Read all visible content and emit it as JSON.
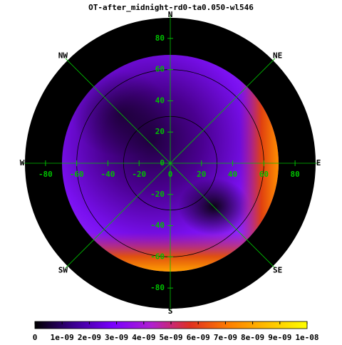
{
  "chart_data": {
    "type": "skymap",
    "title": "OT-after_midnight-rd0-ta0.050-wl546",
    "direction_labels": [
      "N",
      "NE",
      "E",
      "SE",
      "S",
      "SW",
      "W",
      "NW"
    ],
    "xlim": [
      -90,
      90
    ],
    "ylim": [
      -90,
      90
    ],
    "xticks": [
      -80,
      -60,
      -40,
      -20,
      0,
      20,
      40,
      60,
      80
    ],
    "yticks": [
      -80,
      -60,
      -40,
      -20,
      0,
      20,
      40,
      60,
      80
    ],
    "circles": [
      30,
      60
    ],
    "grid_color": "#00c000",
    "zlim": [
      0,
      {
        "value": 1e-08,
        "label": "1e-08"
      }
    ],
    "zticks": [
      0,
      {
        "value": 1e-09,
        "label": "1e-09"
      },
      {
        "value": 2e-09,
        "label": "2e-09"
      },
      {
        "value": 3e-09,
        "label": "3e-09"
      },
      {
        "value": 4e-09,
        "label": "4e-09"
      },
      {
        "value": 5e-09,
        "label": "5e-09"
      },
      {
        "value": 6e-09,
        "label": "6e-09"
      },
      {
        "value": 7e-09,
        "label": "7e-09"
      },
      {
        "value": 8e-09,
        "label": "8e-09"
      },
      {
        "value": 9e-09,
        "label": "9e-09"
      },
      {
        "value": 1e-08,
        "label": "1e-08"
      }
    ],
    "colormap": [
      "#000000",
      "#3a0090",
      "#7a00ff",
      "#b020d0",
      "#e03020",
      "#ff8000",
      "#ffc000",
      "#ffff00"
    ]
  }
}
